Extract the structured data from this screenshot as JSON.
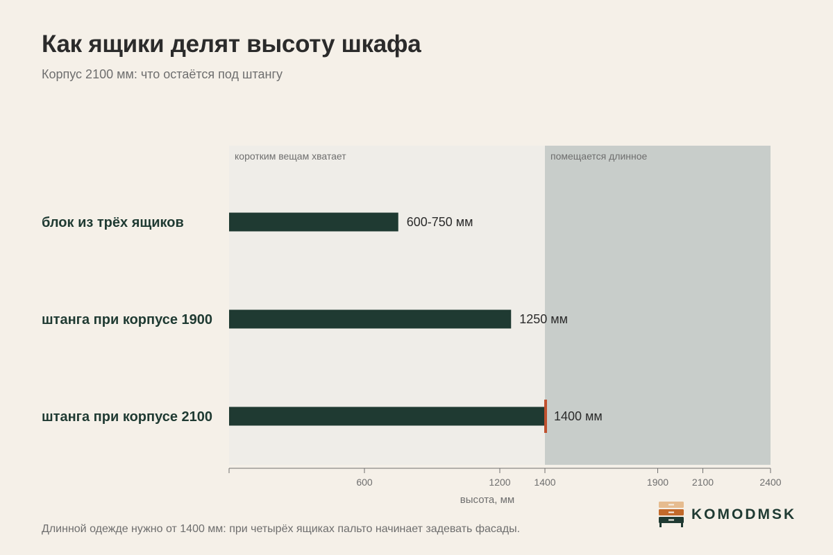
{
  "title": "Как ящики делят высоту шкафа",
  "subtitle": "Корпус 2100 мм: что остаётся под штангу",
  "footnote": "Длинной одежде нужно от 1400 мм: при четырёх ящиках пальто начинает задевать фасады.",
  "brand": {
    "name": "KOMODMSK"
  },
  "colors": {
    "background": "#f5f0e8",
    "zone_short": "#efede8",
    "zone_long": "#c8cdca",
    "bar": "#1f3a32",
    "marker": "#c0512f",
    "axis": "#6e6e6e"
  },
  "chart_data": {
    "type": "bar",
    "orientation": "horizontal",
    "categories": [
      "блок из трёх ящиков",
      "штанга при корпусе 1900",
      "штанга при корпусе 2100"
    ],
    "values": [
      750,
      1250,
      1400
    ],
    "value_labels": [
      "600-750 мм",
      "1250 мм",
      "1400 мм"
    ],
    "highlight_index": 2,
    "xlabel": "высота, мм",
    "xlim": [
      0,
      2400
    ],
    "xticks": [
      600,
      1200,
      1400,
      1900,
      2100,
      2400
    ],
    "zones": [
      {
        "from": 0,
        "to": 1400,
        "label": "коротким вещам хватает"
      },
      {
        "from": 1400,
        "to": 2400,
        "label": "помещается длинное"
      }
    ],
    "grid": false,
    "legend": "none"
  }
}
